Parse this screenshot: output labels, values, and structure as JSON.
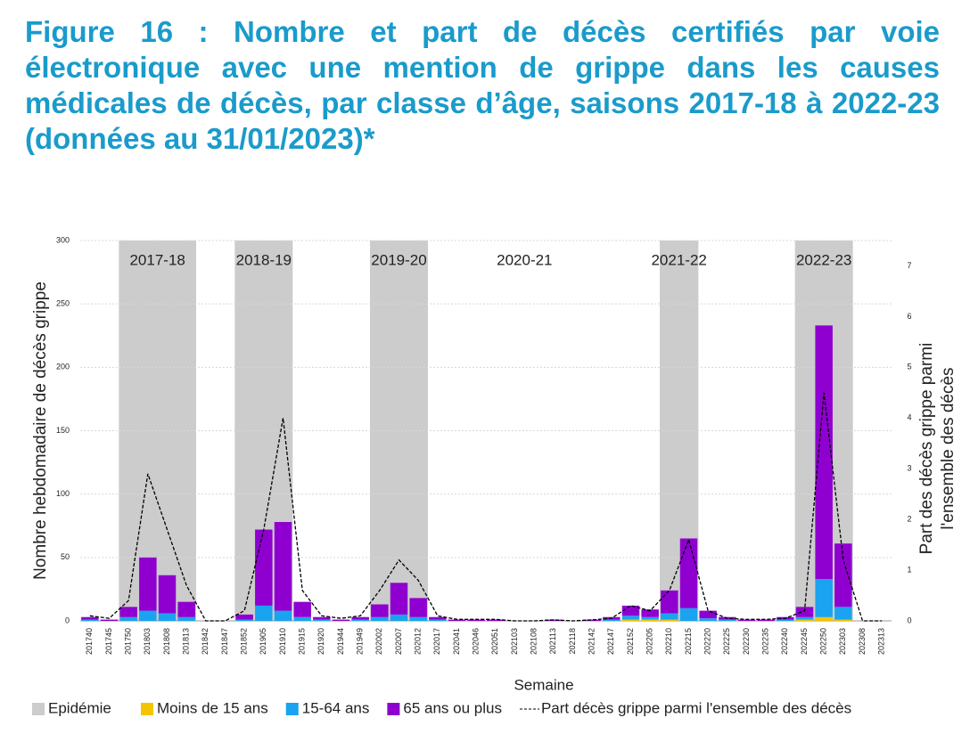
{
  "chart_data": {
    "type": "bar",
    "title": "Figure 16 : Nombre et part de décès certifiés par voie électronique avec une mention de grippe dans les causes médicales de décès, par classe d’âge, saisons 2017-18 à 2022-23 (données au 31/01/2023)*",
    "ylabel": "Nombre hebdomadaire de décès grippe",
    "y2label": [
      "Part des décès grippe parmi",
      "l'ensemble des décès"
    ],
    "xlabel": "Semaine",
    "stacked": true,
    "grid": true,
    "legend": "bottom",
    "categories": [
      "201740",
      "201745",
      "201750",
      "201803",
      "201808",
      "201813",
      "201842",
      "201847",
      "201852",
      "201905",
      "201910",
      "201915",
      "201920",
      "201944",
      "201949",
      "202002",
      "202007",
      "202012",
      "202017",
      "202041",
      "202046",
      "202051",
      "202103",
      "202108",
      "202113",
      "202118",
      "202142",
      "202147",
      "202152",
      "202205",
      "202210",
      "202215",
      "202220",
      "202225",
      "202230",
      "202235",
      "202240",
      "202245",
      "202250",
      "202303",
      "202308",
      "202313"
    ],
    "series": [
      {
        "name": "Moins de 15 ans",
        "color": "#f5c400",
        "values": [
          0,
          0,
          0,
          0,
          0,
          0,
          0,
          0,
          0,
          0,
          0,
          0,
          0,
          0,
          0,
          0,
          0,
          0,
          0,
          0,
          0,
          0,
          0,
          0,
          0,
          0,
          0,
          0,
          1,
          1,
          1,
          0,
          0,
          0,
          0,
          0,
          0,
          1,
          3,
          1,
          0,
          0
        ]
      },
      {
        "name": "15-64 ans",
        "color": "#1aa3f0",
        "values": [
          1,
          0,
          3,
          8,
          6,
          3,
          0,
          0,
          1,
          12,
          8,
          3,
          1,
          0,
          1,
          3,
          5,
          3,
          1,
          0,
          0,
          0,
          0,
          0,
          0,
          0,
          0,
          1,
          3,
          2,
          5,
          10,
          2,
          1,
          0,
          0,
          1,
          2,
          30,
          10,
          0,
          0
        ]
      },
      {
        "name": "65 ans ou plus",
        "color": "#8f00d0",
        "values": [
          2,
          1,
          8,
          42,
          30,
          12,
          0,
          0,
          4,
          60,
          70,
          12,
          2,
          1,
          2,
          10,
          25,
          15,
          2,
          1,
          1,
          1,
          0,
          0,
          1,
          0,
          1,
          2,
          8,
          6,
          18,
          55,
          6,
          2,
          1,
          1,
          2,
          8,
          200,
          50,
          0,
          0
        ]
      },
      {
        "name": "Part décès grippe parmi l'ensemble des décès",
        "color": "#000000",
        "type": "line",
        "dashed": true,
        "axis": "y2",
        "values": [
          0.1,
          0.05,
          0.4,
          2.9,
          1.8,
          0.7,
          0,
          0,
          0.2,
          1.8,
          4.0,
          0.6,
          0.1,
          0.05,
          0.1,
          0.6,
          1.2,
          0.8,
          0.1,
          0.03,
          0.03,
          0.03,
          0,
          0,
          0.02,
          0,
          0.02,
          0.05,
          0.3,
          0.2,
          0.6,
          1.6,
          0.2,
          0.05,
          0.03,
          0.03,
          0.05,
          0.2,
          4.5,
          1.2,
          0,
          0
        ]
      }
    ],
    "epidemic": {
      "label": "Epidémie",
      "color": "#cccccc"
    },
    "seasons": [
      {
        "label": "2017-18",
        "start": "201750",
        "end": "201813",
        "epidemic": true
      },
      {
        "label": "2018-19",
        "start": "201852",
        "end": "201910",
        "epidemic": true
      },
      {
        "label": "2019-20",
        "start": "202002",
        "end": "202012",
        "epidemic": true
      },
      {
        "label": "2020-21",
        "start": "202051",
        "end": "202113",
        "epidemic": false
      },
      {
        "label": "2021-22",
        "start": "202210",
        "end": "202215",
        "epidemic": true
      },
      {
        "label": "2022-23",
        "start": "202245",
        "end": "202303",
        "epidemic": true
      }
    ],
    "ylim": [
      0,
      300
    ],
    "yticks": [
      0,
      50,
      100,
      150,
      200,
      250,
      300
    ],
    "y2lim": [
      0,
      7.5
    ],
    "y2ticks": [
      0,
      1,
      2,
      3,
      4,
      5,
      6,
      7
    ]
  }
}
